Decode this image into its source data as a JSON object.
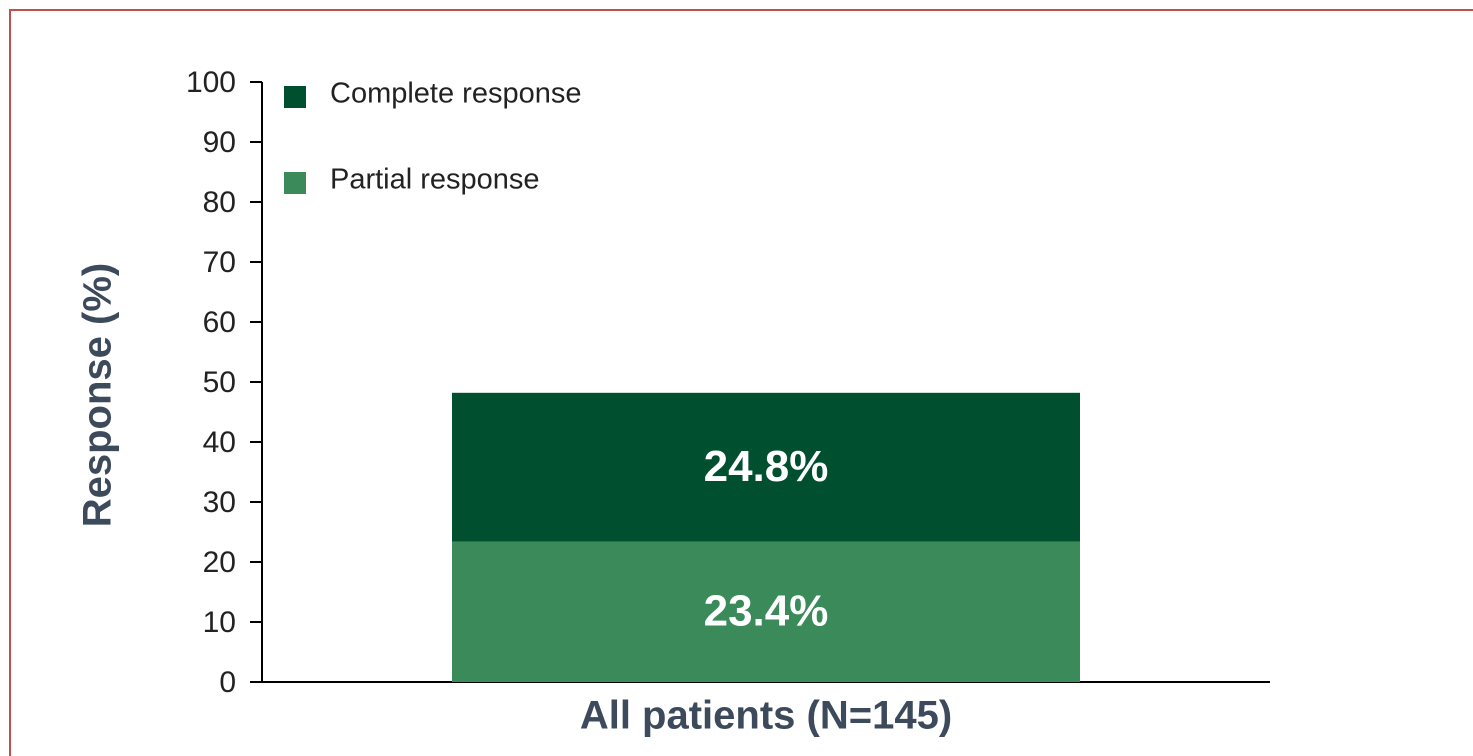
{
  "chart_data": {
    "type": "stacked_bar",
    "ylabel": "Response (%)",
    "categories": [
      "All patients (N=145)"
    ],
    "series": [
      {
        "name": "Partial response",
        "color": "#3a8a5a",
        "values": [
          23.4
        ],
        "value_labels": [
          "23.4%"
        ]
      },
      {
        "name": "Complete response",
        "color": "#005030",
        "values": [
          24.8
        ],
        "value_labels": [
          "24.8%"
        ]
      }
    ],
    "ylim": [
      0,
      100
    ],
    "yticks": [
      0,
      10,
      20,
      30,
      40,
      50,
      60,
      70,
      80,
      90,
      100
    ]
  }
}
